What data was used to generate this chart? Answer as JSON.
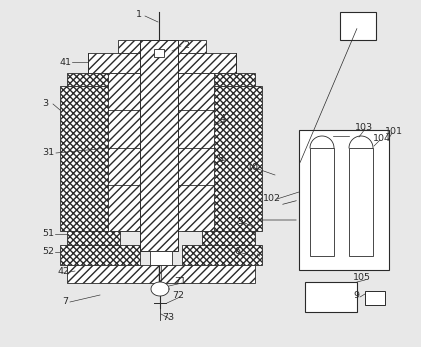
{
  "bg_color": "#e8e8e8",
  "lc": "#2a2a2a",
  "figsize": [
    4.21,
    3.47
  ],
  "dpi": 100
}
